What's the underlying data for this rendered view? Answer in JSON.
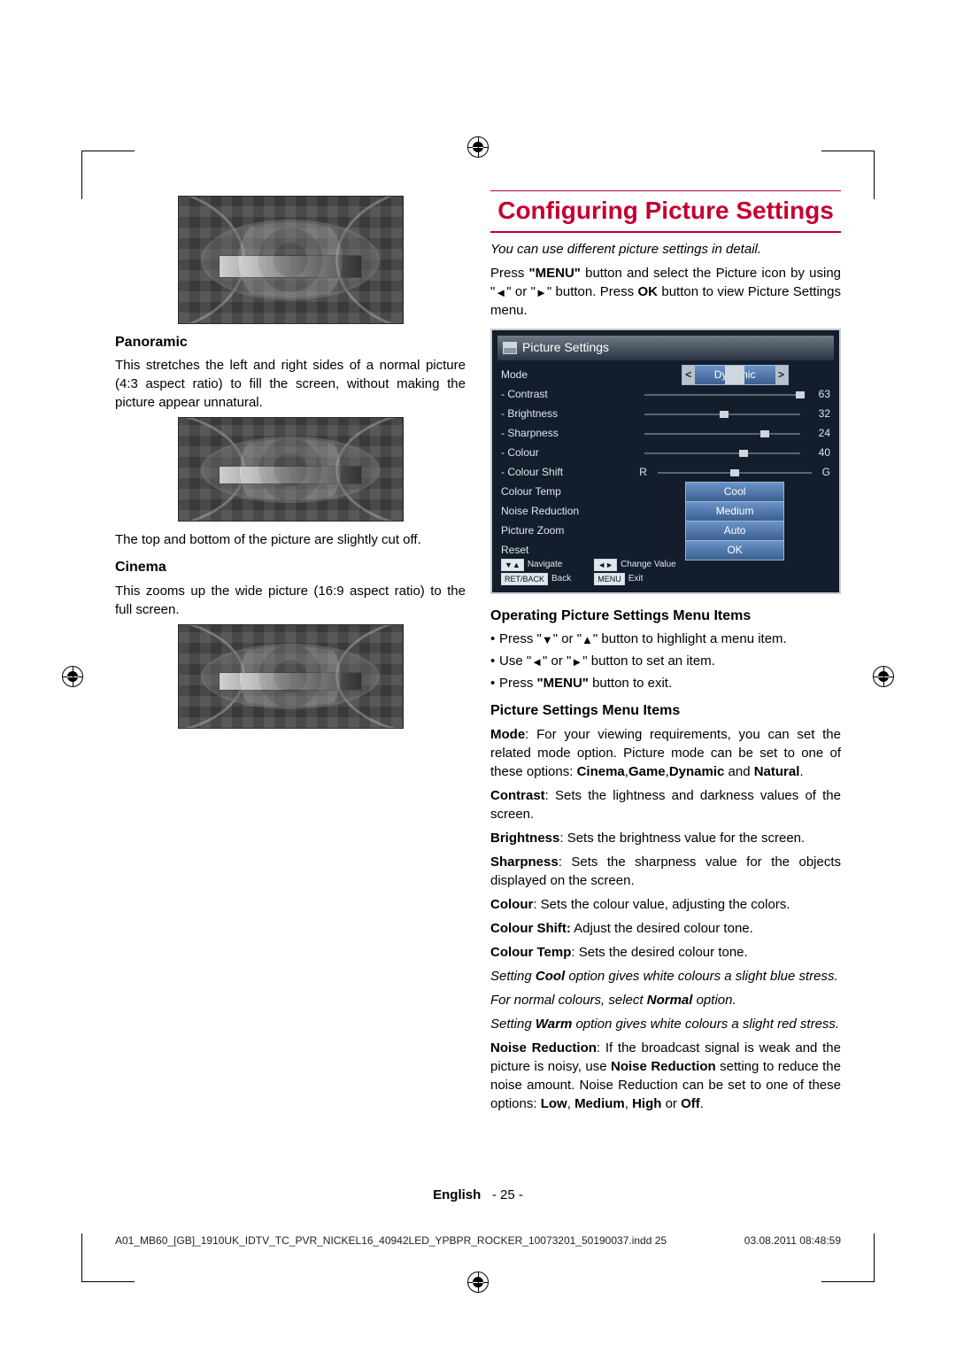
{
  "cropmarks": true,
  "left": {
    "modes": [
      {
        "heading": "Panoramic",
        "text_before_showing_topcard": true,
        "paragraphs": [
          "This stretches the left and right sides of a normal picture (4:3 aspect ratio) to fill the screen, without making the picture appear unnatural."
        ],
        "tail_line": "The top and bottom of the picture are slightly cut off."
      },
      {
        "heading": "Cinema",
        "paragraphs": [
          "This zooms up the wide picture (16:9 aspect ratio) to the full screen."
        ]
      }
    ]
  },
  "right": {
    "section_title": "Configuring Picture Settings",
    "intro_italic": "You can use different picture settings in detail.",
    "intro_para": "Press \"MENU\" button and select the Picture icon by using \"◄\" or \"►\" button. Press OK button to view Picture Settings menu.",
    "osd": {
      "title": "Picture Settings",
      "rows": [
        {
          "label": "Mode",
          "type": "select",
          "value": "Dynamic"
        },
        {
          "label": "Contrast",
          "type": "slider",
          "value": 63,
          "max": 63,
          "sub": true
        },
        {
          "label": "Brightness",
          "type": "slider",
          "value": 32,
          "max": 63,
          "sub": true
        },
        {
          "label": "Sharpness",
          "type": "slider",
          "value": 24,
          "max": 31,
          "sub": true
        },
        {
          "label": "Colour",
          "type": "slider",
          "value": 40,
          "max": 63,
          "sub": true
        },
        {
          "label": "Colour Shift",
          "type": "slider-rg",
          "value": 0,
          "sub": true,
          "left_tag": "R",
          "right_tag": "G"
        },
        {
          "label": "Colour Temp",
          "type": "pill",
          "value": "Cool"
        },
        {
          "label": "Noise Reduction",
          "type": "pill",
          "value": "Medium"
        },
        {
          "label": "Picture Zoom",
          "type": "pill",
          "value": "Auto"
        },
        {
          "label": "Reset",
          "type": "pill",
          "value": "OK"
        }
      ],
      "footer": {
        "navigate": "Navigate",
        "back": "Back",
        "change": "Change Value",
        "exit": "Exit",
        "back_key": "RET/BACK",
        "menu_key": "MENU"
      }
    },
    "op_heading": "Operating Picture Settings Menu Items",
    "op_items": [
      "Press \"▼\" or \"▲\" button to highlight a menu item.",
      "Use \"◄\" or \"►\" button to set an item.",
      "Press \"MENU\" button to exit."
    ],
    "items_heading": "Picture Settings Menu Items",
    "items_paras": [
      {
        "html": "<b>Mode</b>: For your viewing requirements, you can set the related mode option. Picture mode can be set to one of these options: <b>Cinema</b>,<b>Game</b>,<b>Dynamic</b> and <b>Natural</b>."
      },
      {
        "html": "<b>Contrast</b>: Sets the lightness and darkness values of the screen."
      },
      {
        "html": "<b>Brightness</b>: Sets the brightness value for the screen."
      },
      {
        "html": "<b>Sharpness</b>: Sets the sharpness value for the objects displayed on the screen."
      },
      {
        "html": "<b>Colour</b>: Sets the colour value, adjusting the colors."
      },
      {
        "html": "<b>Colour Shift:</b> Adjust the desired colour tone."
      },
      {
        "html": "<b>Colour Temp</b>: Sets the desired colour tone."
      },
      {
        "italic": true,
        "html": "Setting <b>Cool</b> option gives white colours a slight blue stress."
      },
      {
        "italic": true,
        "html": "For normal colours, select <b>Normal</b> option."
      },
      {
        "italic": true,
        "html": "Setting <b>Warm</b> option gives white colours a slight red stress."
      },
      {
        "html": "<b>Noise Reduction</b>: If the broadcast signal is weak and the picture is noisy, use <b>Noise Reduction</b> setting to reduce the noise amount. Noise Reduction can be set to one of these options: <b>Low</b>, <b>Medium</b>, <b>High</b> or <b>Off</b>."
      }
    ]
  },
  "footer": {
    "lang": "English",
    "page": "- 25 -"
  },
  "footline": {
    "file": "A01_MB60_[GB]_1910UK_IDTV_TC_PVR_NICKEL16_40942LED_YPBPR_ROCKER_10073201_50190037.indd   25",
    "ts": "03.08.2011   08:48:59"
  }
}
